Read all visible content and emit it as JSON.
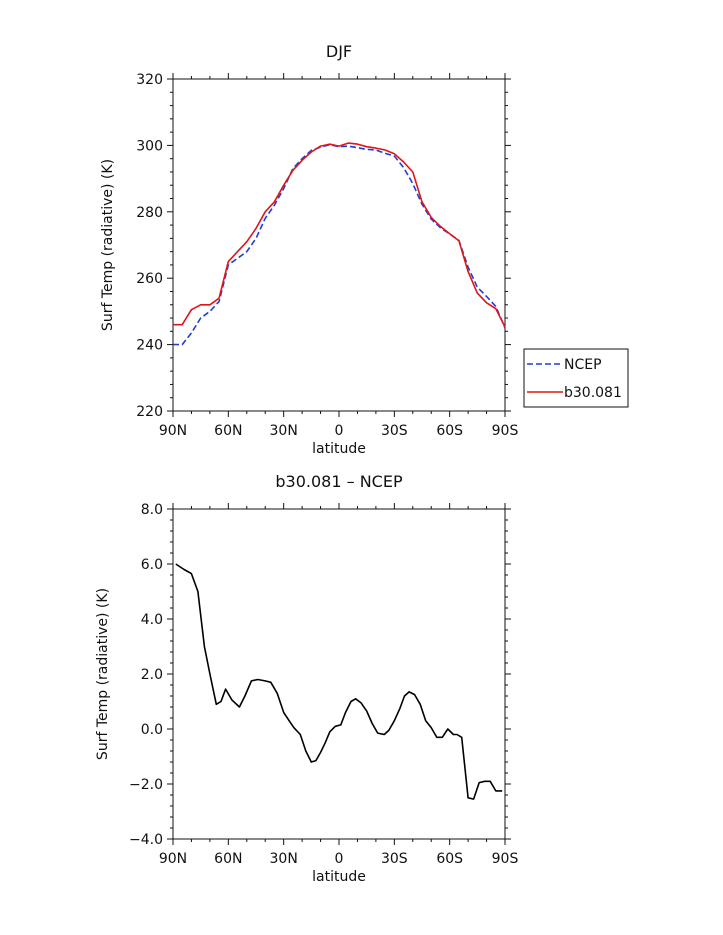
{
  "chart_data": [
    {
      "type": "line",
      "title": "DJF",
      "xlabel": "latitude",
      "ylabel": "Surf Temp (radiative) (K)",
      "xlim": [
        90,
        -90
      ],
      "ylim": [
        220,
        320
      ],
      "x_ticks": [
        {
          "value": 90,
          "label": "90N"
        },
        {
          "value": 60,
          "label": "60N"
        },
        {
          "value": 30,
          "label": "30N"
        },
        {
          "value": 0,
          "label": "0"
        },
        {
          "value": -30,
          "label": "30S"
        },
        {
          "value": -60,
          "label": "60S"
        },
        {
          "value": -90,
          "label": "90S"
        }
      ],
      "y_ticks": [
        {
          "value": 220,
          "label": "220"
        },
        {
          "value": 240,
          "label": "240"
        },
        {
          "value": 260,
          "label": "260"
        },
        {
          "value": 280,
          "label": "280"
        },
        {
          "value": 300,
          "label": "300"
        },
        {
          "value": 320,
          "label": "320"
        }
      ],
      "legend_position": "right",
      "series": [
        {
          "name": "NCEP",
          "color": "#1f3fd1",
          "style": "dashed",
          "x": [
            90,
            85,
            80,
            75,
            70,
            65,
            60,
            55,
            50,
            45,
            40,
            35,
            30,
            25,
            20,
            15,
            10,
            5,
            0,
            -5,
            -10,
            -15,
            -20,
            -25,
            -30,
            -35,
            -40,
            -45,
            -50,
            -55,
            -60,
            -65,
            -70,
            -75,
            -80,
            -85,
            -90
          ],
          "values": [
            240,
            240,
            243.5,
            248,
            250,
            253,
            264,
            266,
            268,
            272,
            278,
            282,
            287,
            293,
            296,
            298.5,
            299.5,
            300.2,
            299.6,
            299.8,
            299.3,
            298.8,
            298.6,
            297.6,
            296.8,
            293.3,
            288.5,
            282.3,
            277.8,
            275.2,
            273.3,
            271.4,
            263.3,
            257.3,
            254.5,
            251.5,
            245
          ]
        },
        {
          "name": "b30.081",
          "color": "#e01515",
          "style": "solid",
          "x": [
            90,
            85,
            80,
            75,
            70,
            65,
            60,
            55,
            50,
            45,
            40,
            35,
            30,
            25,
            20,
            15,
            10,
            5,
            0,
            -5,
            -10,
            -15,
            -20,
            -25,
            -30,
            -35,
            -40,
            -45,
            -50,
            -55,
            -60,
            -65,
            -70,
            -75,
            -80,
            -85,
            -90
          ],
          "values": [
            246,
            246,
            250.5,
            252,
            252,
            254,
            265,
            268,
            271,
            275,
            280,
            283,
            288,
            292.5,
            295.5,
            298,
            299.8,
            300.4,
            299.8,
            300.7,
            300.4,
            299.6,
            299.2,
            298.6,
            297.5,
            295,
            292,
            283,
            278.3,
            275.6,
            273.4,
            271.3,
            262,
            255.5,
            252.6,
            250.8,
            245.3
          ]
        }
      ]
    },
    {
      "type": "line",
      "title": "b30.081 – NCEP",
      "xlabel": "latitude",
      "ylabel": "Surf Temp (radiative) (K)",
      "xlim": [
        90,
        -90
      ],
      "ylim": [
        -4.0,
        8.0
      ],
      "x_ticks": [
        {
          "value": 90,
          "label": "90N"
        },
        {
          "value": 60,
          "label": "60N"
        },
        {
          "value": 30,
          "label": "30N"
        },
        {
          "value": 0,
          "label": "0"
        },
        {
          "value": -30,
          "label": "30S"
        },
        {
          "value": -60,
          "label": "60S"
        },
        {
          "value": -90,
          "label": "90S"
        }
      ],
      "y_ticks": [
        {
          "value": -4.0,
          "label": "−4.0"
        },
        {
          "value": -2.0,
          "label": "−2.0"
        },
        {
          "value": 0.0,
          "label": "0.0"
        },
        {
          "value": 2.0,
          "label": "2.0"
        },
        {
          "value": 4.0,
          "label": "4.0"
        },
        {
          "value": 6.0,
          "label": "6.0"
        },
        {
          "value": 8.0,
          "label": "8.0"
        }
      ],
      "series": [
        {
          "color": "#000000",
          "style": "solid",
          "x": [
            88.5,
            84,
            80,
            76.5,
            73,
            70,
            66.5,
            64,
            61.5,
            58,
            54,
            51,
            47.5,
            44,
            40,
            37,
            33.5,
            30,
            27,
            24.5,
            21,
            18,
            15,
            12.5,
            10,
            7.5,
            5,
            2,
            -1,
            -3.5,
            -6.5,
            -9,
            -12,
            -15,
            -18,
            -21,
            -24.5,
            -27,
            -30,
            -33,
            -35.5,
            -38,
            -41,
            -44,
            -47,
            -50,
            -53,
            -56,
            -59,
            -62,
            -64,
            -66.5,
            -70,
            -73,
            -76,
            -79,
            -82,
            -85,
            -88.5
          ],
          "values": [
            6.0,
            5.8,
            5.65,
            5.0,
            3.0,
            2.0,
            0.9,
            1.0,
            1.45,
            1.05,
            0.8,
            1.2,
            1.75,
            1.8,
            1.75,
            1.7,
            1.3,
            0.6,
            0.3,
            0.05,
            -0.2,
            -0.8,
            -1.2,
            -1.15,
            -0.85,
            -0.5,
            -0.1,
            0.1,
            0.15,
            0.6,
            1.0,
            1.1,
            0.95,
            0.65,
            0.2,
            -0.15,
            -0.2,
            -0.05,
            0.3,
            0.75,
            1.2,
            1.35,
            1.25,
            0.9,
            0.3,
            0.05,
            -0.3,
            -0.3,
            0.0,
            -0.2,
            -0.2,
            -0.3,
            -2.5,
            -2.55,
            -1.95,
            -1.9,
            -1.9,
            -2.25,
            -2.25
          ]
        }
      ]
    }
  ]
}
